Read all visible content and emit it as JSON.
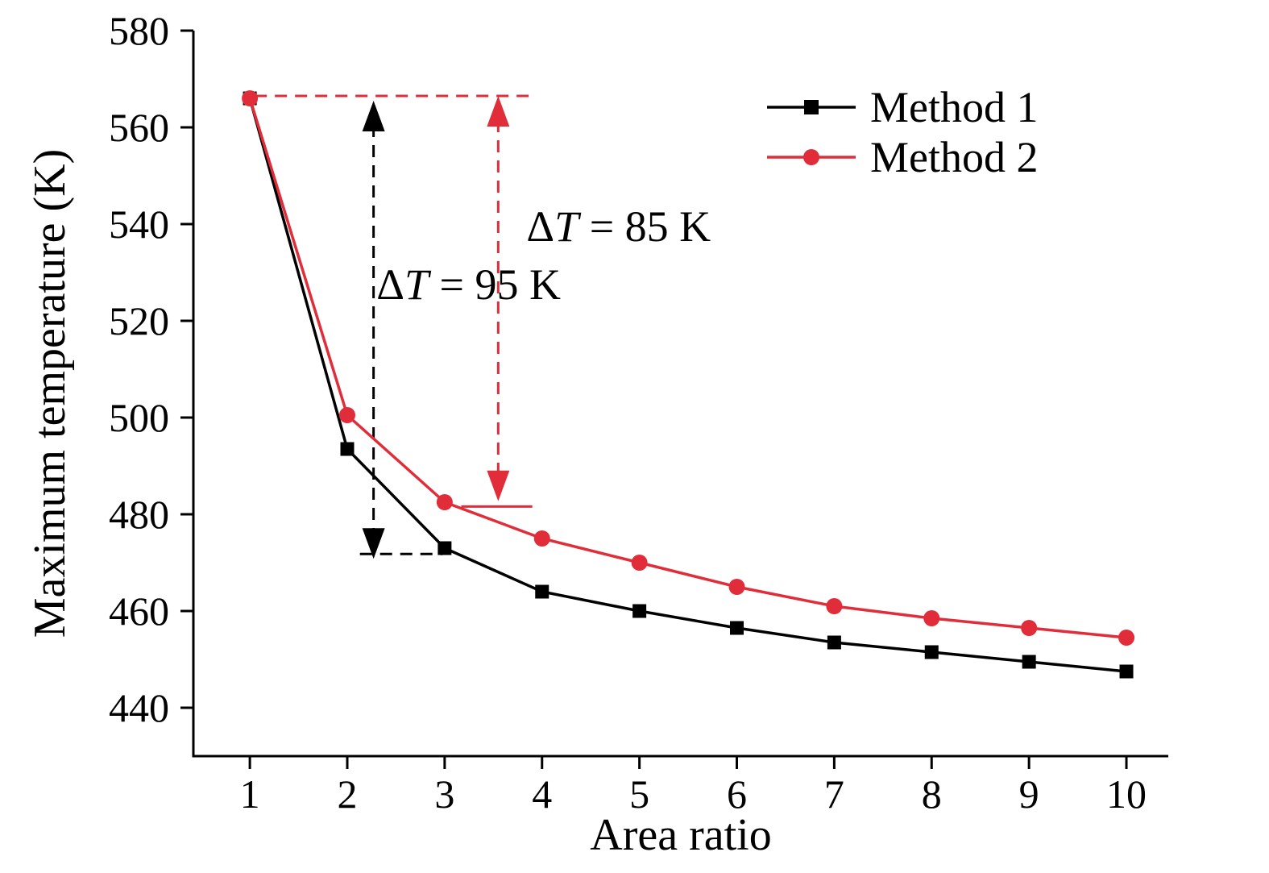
{
  "figure": {
    "background": "#ffffff"
  },
  "chart_data": {
    "type": "line",
    "title": "",
    "xlabel": "Area ratio",
    "ylabel": "Maximum temperature (K)",
    "x": [
      1,
      2,
      3,
      4,
      5,
      6,
      7,
      8,
      9,
      10
    ],
    "series": [
      {
        "name": "Method 1",
        "color": "#000000",
        "marker": "square",
        "values": [
          566,
          493.5,
          473,
          464,
          460,
          456.5,
          453.5,
          451.5,
          449.5,
          447.5
        ]
      },
      {
        "name": "Method 2",
        "color": "#e12d39",
        "marker": "circle",
        "values": [
          566,
          500.5,
          482.5,
          475,
          470,
          465,
          461,
          458.5,
          456.5,
          454.5
        ]
      }
    ],
    "xlim": [
      0.42,
      10.43
    ],
    "ylim": [
      430,
      580
    ],
    "xticks": [
      1,
      2,
      3,
      4,
      5,
      6,
      7,
      8,
      9,
      10
    ],
    "yticks": [
      440,
      460,
      480,
      500,
      520,
      540,
      560,
      580
    ],
    "grid": false,
    "legend_position": "top-right",
    "legend": [
      "Method 1",
      "Method 2"
    ],
    "annotations": [
      {
        "id": "delta-95",
        "text": "ΔT = 95 K",
        "color": "#000000",
        "arrow": {
          "x": 2.27,
          "y_top": 565.5,
          "y_bottom": 470.8
        },
        "label_anchor": {
          "x": 2.3,
          "y": 524.5
        },
        "lines": [
          {
            "x1": 2.13,
            "y1": 471.8,
            "x2": 2.98,
            "y2": 471.8,
            "dashed": true
          }
        ]
      },
      {
        "id": "delta-85",
        "text": "ΔT = 85 K",
        "color": "#e12d39",
        "arrow": {
          "x": 3.55,
          "y_top": 566.5,
          "y_bottom": 482.7
        },
        "label_anchor": {
          "x": 3.84,
          "y": 536.5
        },
        "lines": [
          {
            "x1": 1.05,
            "y1": 566.5,
            "x2": 3.92,
            "y2": 566.5,
            "dashed": true
          },
          {
            "x1": 3.17,
            "y1": 481.6,
            "x2": 3.9,
            "y2": 481.6,
            "dashed": false
          }
        ]
      }
    ]
  }
}
